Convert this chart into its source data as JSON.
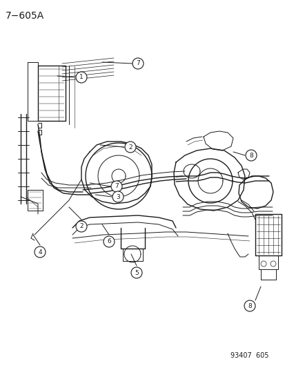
{
  "title": "7−605A",
  "footer": "93407  605",
  "bg_color": "#ffffff",
  "line_color": "#1a1a1a",
  "title_fontsize": 10,
  "footer_fontsize": 7,
  "callout_r": 0.018,
  "callout_fontsize": 6.5,
  "fig_width": 4.14,
  "fig_height": 5.33,
  "dpi": 100
}
